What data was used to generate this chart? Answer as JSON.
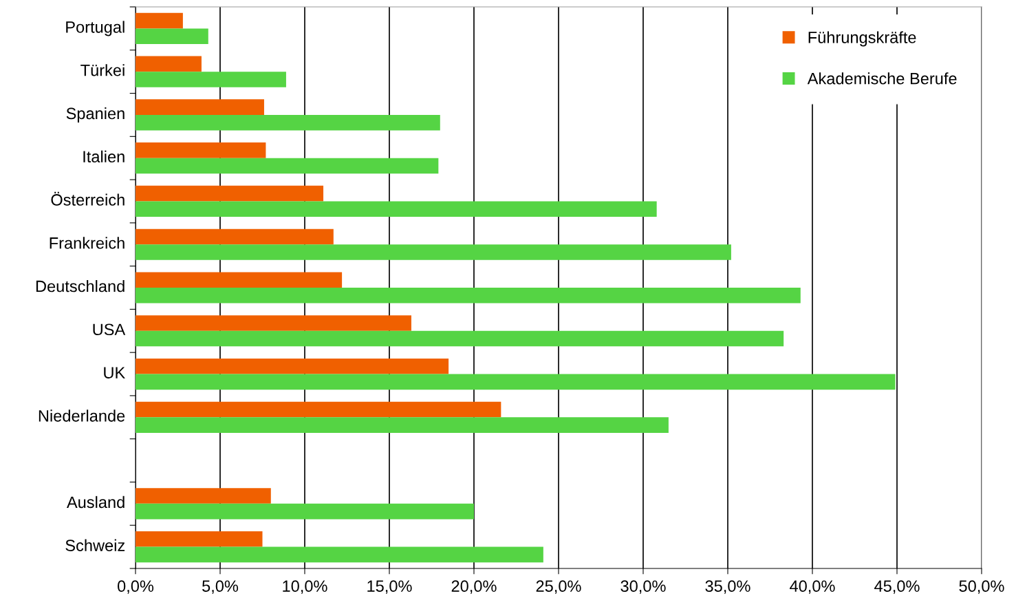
{
  "chart_data": {
    "type": "bar",
    "orientation": "horizontal",
    "categories": [
      "Portugal",
      "Türkei",
      "Spanien",
      "Italien",
      "Österreich",
      "Frankreich",
      "Deutschland",
      "USA",
      "UK",
      "Niederlande",
      null,
      "Ausland",
      "Schweiz"
    ],
    "series": [
      {
        "name": "Führungskräfte",
        "color": "#f06000",
        "values": [
          2.8,
          3.9,
          7.6,
          7.7,
          11.1,
          11.7,
          12.2,
          16.3,
          18.5,
          21.6,
          null,
          8.0,
          7.5
        ]
      },
      {
        "name": "Akademische Berufe",
        "color": "#55d444",
        "values": [
          4.3,
          8.9,
          18.0,
          17.9,
          30.8,
          35.2,
          39.3,
          38.3,
          44.9,
          31.5,
          null,
          20.0,
          24.1
        ]
      }
    ],
    "xlim": [
      0,
      50
    ],
    "xticks": [
      {
        "value": 0,
        "label": "0,0%"
      },
      {
        "value": 5,
        "label": "5,0%"
      },
      {
        "value": 10,
        "label": "10,0%"
      },
      {
        "value": 15,
        "label": "15,0%"
      },
      {
        "value": 20,
        "label": "20,0%"
      },
      {
        "value": 25,
        "label": "25,0%"
      },
      {
        "value": 30,
        "label": "30,0%"
      },
      {
        "value": 35,
        "label": "35,0%"
      },
      {
        "value": 40,
        "label": "40,0%"
      },
      {
        "value": 45,
        "label": "45,0%"
      },
      {
        "value": 50,
        "label": "50,0%"
      }
    ],
    "grid": "x",
    "legend": "top right"
  }
}
